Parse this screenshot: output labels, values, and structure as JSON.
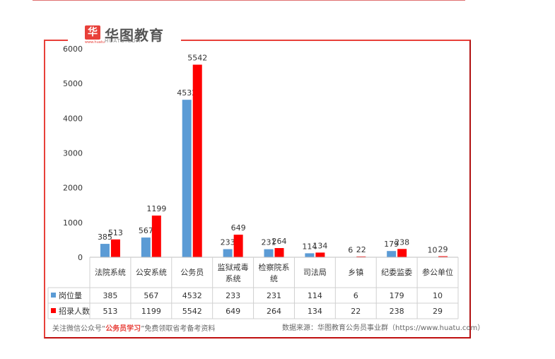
{
  "brand": {
    "name": "华图教育",
    "url": "HUATU.COM",
    "mark": "华",
    "mark_sub": "www.huatu"
  },
  "footer": {
    "left_prefix": "关注微信公众号“",
    "left_highlight": "公务员学习",
    "left_suffix": "”免费领取省考备考资料",
    "right": "数据来源：华图教育公务员事业群（https://www.huatu.com）"
  },
  "colors": {
    "series1": "#5b9bd5",
    "series2": "#ff0000",
    "frame": "#e8403a",
    "grid": "#d9d9d9"
  },
  "chart_data": {
    "type": "bar",
    "ylim": [
      0,
      6000
    ],
    "yticks": [
      0,
      1000,
      2000,
      3000,
      4000,
      5000,
      6000
    ],
    "categories": [
      "法院系统",
      "公安系统",
      "公务员",
      "监狱戒毒系统",
      "检察院系统",
      "司法局",
      "乡镇",
      "纪委监委",
      "参公单位"
    ],
    "category_lines": [
      [
        "法院系统"
      ],
      [
        "公安系统"
      ],
      [
        "公务员"
      ],
      [
        "监狱戒毒",
        "系统"
      ],
      [
        "检察院系",
        "统"
      ],
      [
        "司法局"
      ],
      [
        "乡镇"
      ],
      [
        "纪委监委"
      ],
      [
        "参公单位"
      ]
    ],
    "series": [
      {
        "name": "岗位量",
        "values": [
          385,
          567,
          4532,
          233,
          231,
          114,
          6,
          179,
          10
        ]
      },
      {
        "name": "招录人数",
        "values": [
          513,
          1199,
          5542,
          649,
          264,
          134,
          22,
          238,
          29
        ]
      }
    ],
    "grid": false,
    "legend": "data-table"
  }
}
